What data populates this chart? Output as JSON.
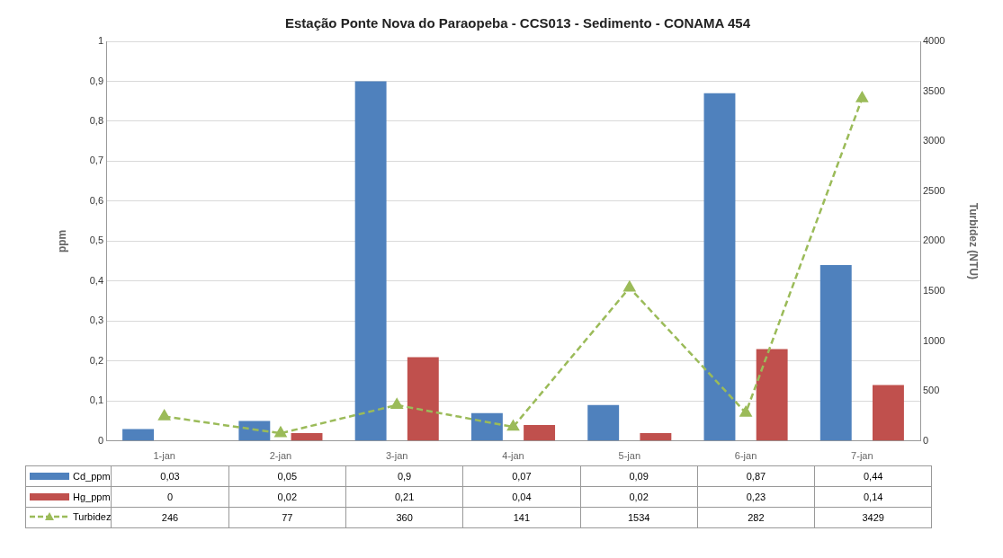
{
  "chart_data": {
    "type": "bar",
    "title": "Estação Ponte Nova do Paraopeba - CCS013 - Sedimento - CONAMA 454",
    "ylabel": "ppm",
    "y2label": "Turbidez (NTU)",
    "categories": [
      "1-jan",
      "2-jan",
      "3-jan",
      "4-jan",
      "5-jan",
      "6-jan",
      "7-jan"
    ],
    "series": [
      {
        "name": "Cd_ppm",
        "color": "#4f81bd",
        "values": [
          0.03,
          0.05,
          0.9,
          0.07,
          0.09,
          0.87,
          0.44
        ],
        "value_labels": [
          "0,03",
          "0,05",
          "0,9",
          "0,07",
          "0,09",
          "0,87",
          "0,44"
        ]
      },
      {
        "name": "Hg_ppm",
        "color": "#c0504d",
        "values": [
          0,
          0.02,
          0.21,
          0.04,
          0.02,
          0.23,
          0.14
        ],
        "value_labels": [
          "0",
          "0,02",
          "0,21",
          "0,04",
          "0,02",
          "0,23",
          "0,14"
        ]
      },
      {
        "name": "Turbidez",
        "type": "line",
        "axis": "y2",
        "color": "#9bbb59",
        "marker": "triangle",
        "line_style": "dashed",
        "values": [
          246,
          77,
          360,
          141,
          1534,
          282,
          3429
        ],
        "value_labels": [
          "246",
          "77",
          "360",
          "141",
          "1534",
          "282",
          "3429"
        ]
      }
    ],
    "ylim": [
      0,
      1
    ],
    "yticks": [
      0,
      {
        "value": 0.1,
        "label": "0,1"
      },
      {
        "value": 0.2,
        "label": "0,2"
      },
      {
        "value": 0.3,
        "label": "0,3"
      },
      {
        "value": 0.4,
        "label": "0,4"
      },
      {
        "value": 0.5,
        "label": "0,5"
      },
      {
        "value": 0.6,
        "label": "0,6"
      },
      {
        "value": 0.7,
        "label": "0,7"
      },
      {
        "value": 0.8,
        "label": "0,8"
      },
      {
        "value": 0.9,
        "label": "0,9"
      },
      1
    ],
    "y2lim": [
      0,
      4000
    ],
    "y2ticks": [
      0,
      500,
      1000,
      1500,
      2000,
      2500,
      3000,
      3500,
      4000
    ],
    "grid": "y",
    "legend": "bottom"
  }
}
